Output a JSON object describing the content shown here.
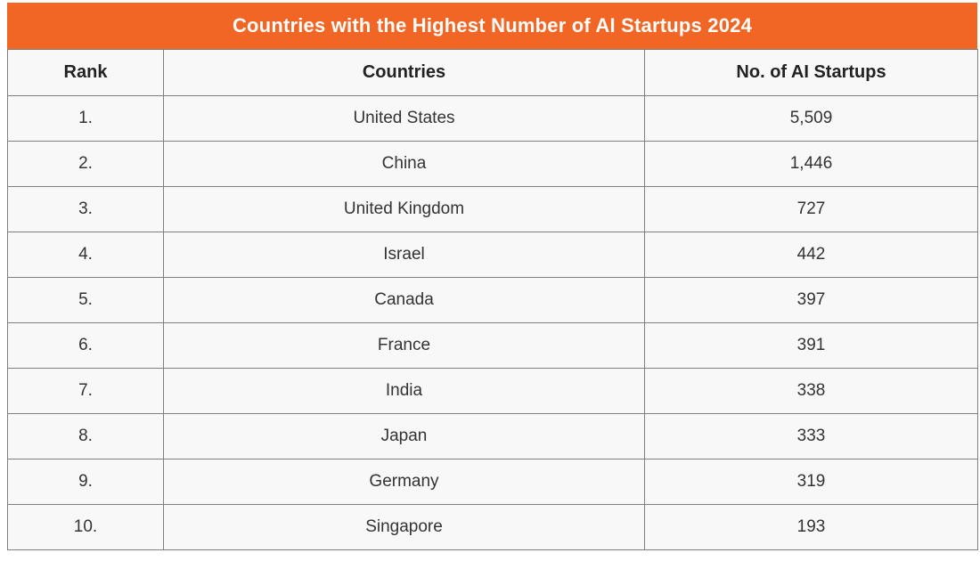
{
  "title": "Countries with the Highest Number of AI Startups 2024",
  "columns": {
    "rank": "Rank",
    "country": "Countries",
    "count": "No. of AI Startups"
  },
  "rows": [
    {
      "rank": "1.",
      "country": "United States",
      "count": "5,509"
    },
    {
      "rank": "2.",
      "country": "China",
      "count": "1,446"
    },
    {
      "rank": "3.",
      "country": "United Kingdom",
      "count": "727"
    },
    {
      "rank": "4.",
      "country": "Israel",
      "count": "442"
    },
    {
      "rank": "5.",
      "country": "Canada",
      "count": "397"
    },
    {
      "rank": "6.",
      "country": "France",
      "count": "391"
    },
    {
      "rank": "7.",
      "country": "India",
      "count": "338"
    },
    {
      "rank": "8.",
      "country": "Japan",
      "count": "333"
    },
    {
      "rank": "9.",
      "country": "Germany",
      "count": "319"
    },
    {
      "rank": "10.",
      "country": "Singapore",
      "count": "193"
    }
  ],
  "colors": {
    "accent_orange": "#f16624",
    "border_gray": "#7f7f7f",
    "cell_background": "#f8f8f9",
    "title_text": "#ffffff",
    "body_text": "#333333"
  },
  "chart_data": {
    "type": "table",
    "title": "Countries with the Highest Number of AI Startups 2024",
    "columns": [
      "Rank",
      "Countries",
      "No. of AI Startups"
    ],
    "categories": [
      "United States",
      "China",
      "United Kingdom",
      "Israel",
      "Canada",
      "France",
      "India",
      "Japan",
      "Germany",
      "Singapore"
    ],
    "values": [
      5509,
      1446,
      727,
      442,
      397,
      391,
      338,
      333,
      319,
      193
    ],
    "ranks": [
      1,
      2,
      3,
      4,
      5,
      6,
      7,
      8,
      9,
      10
    ]
  }
}
